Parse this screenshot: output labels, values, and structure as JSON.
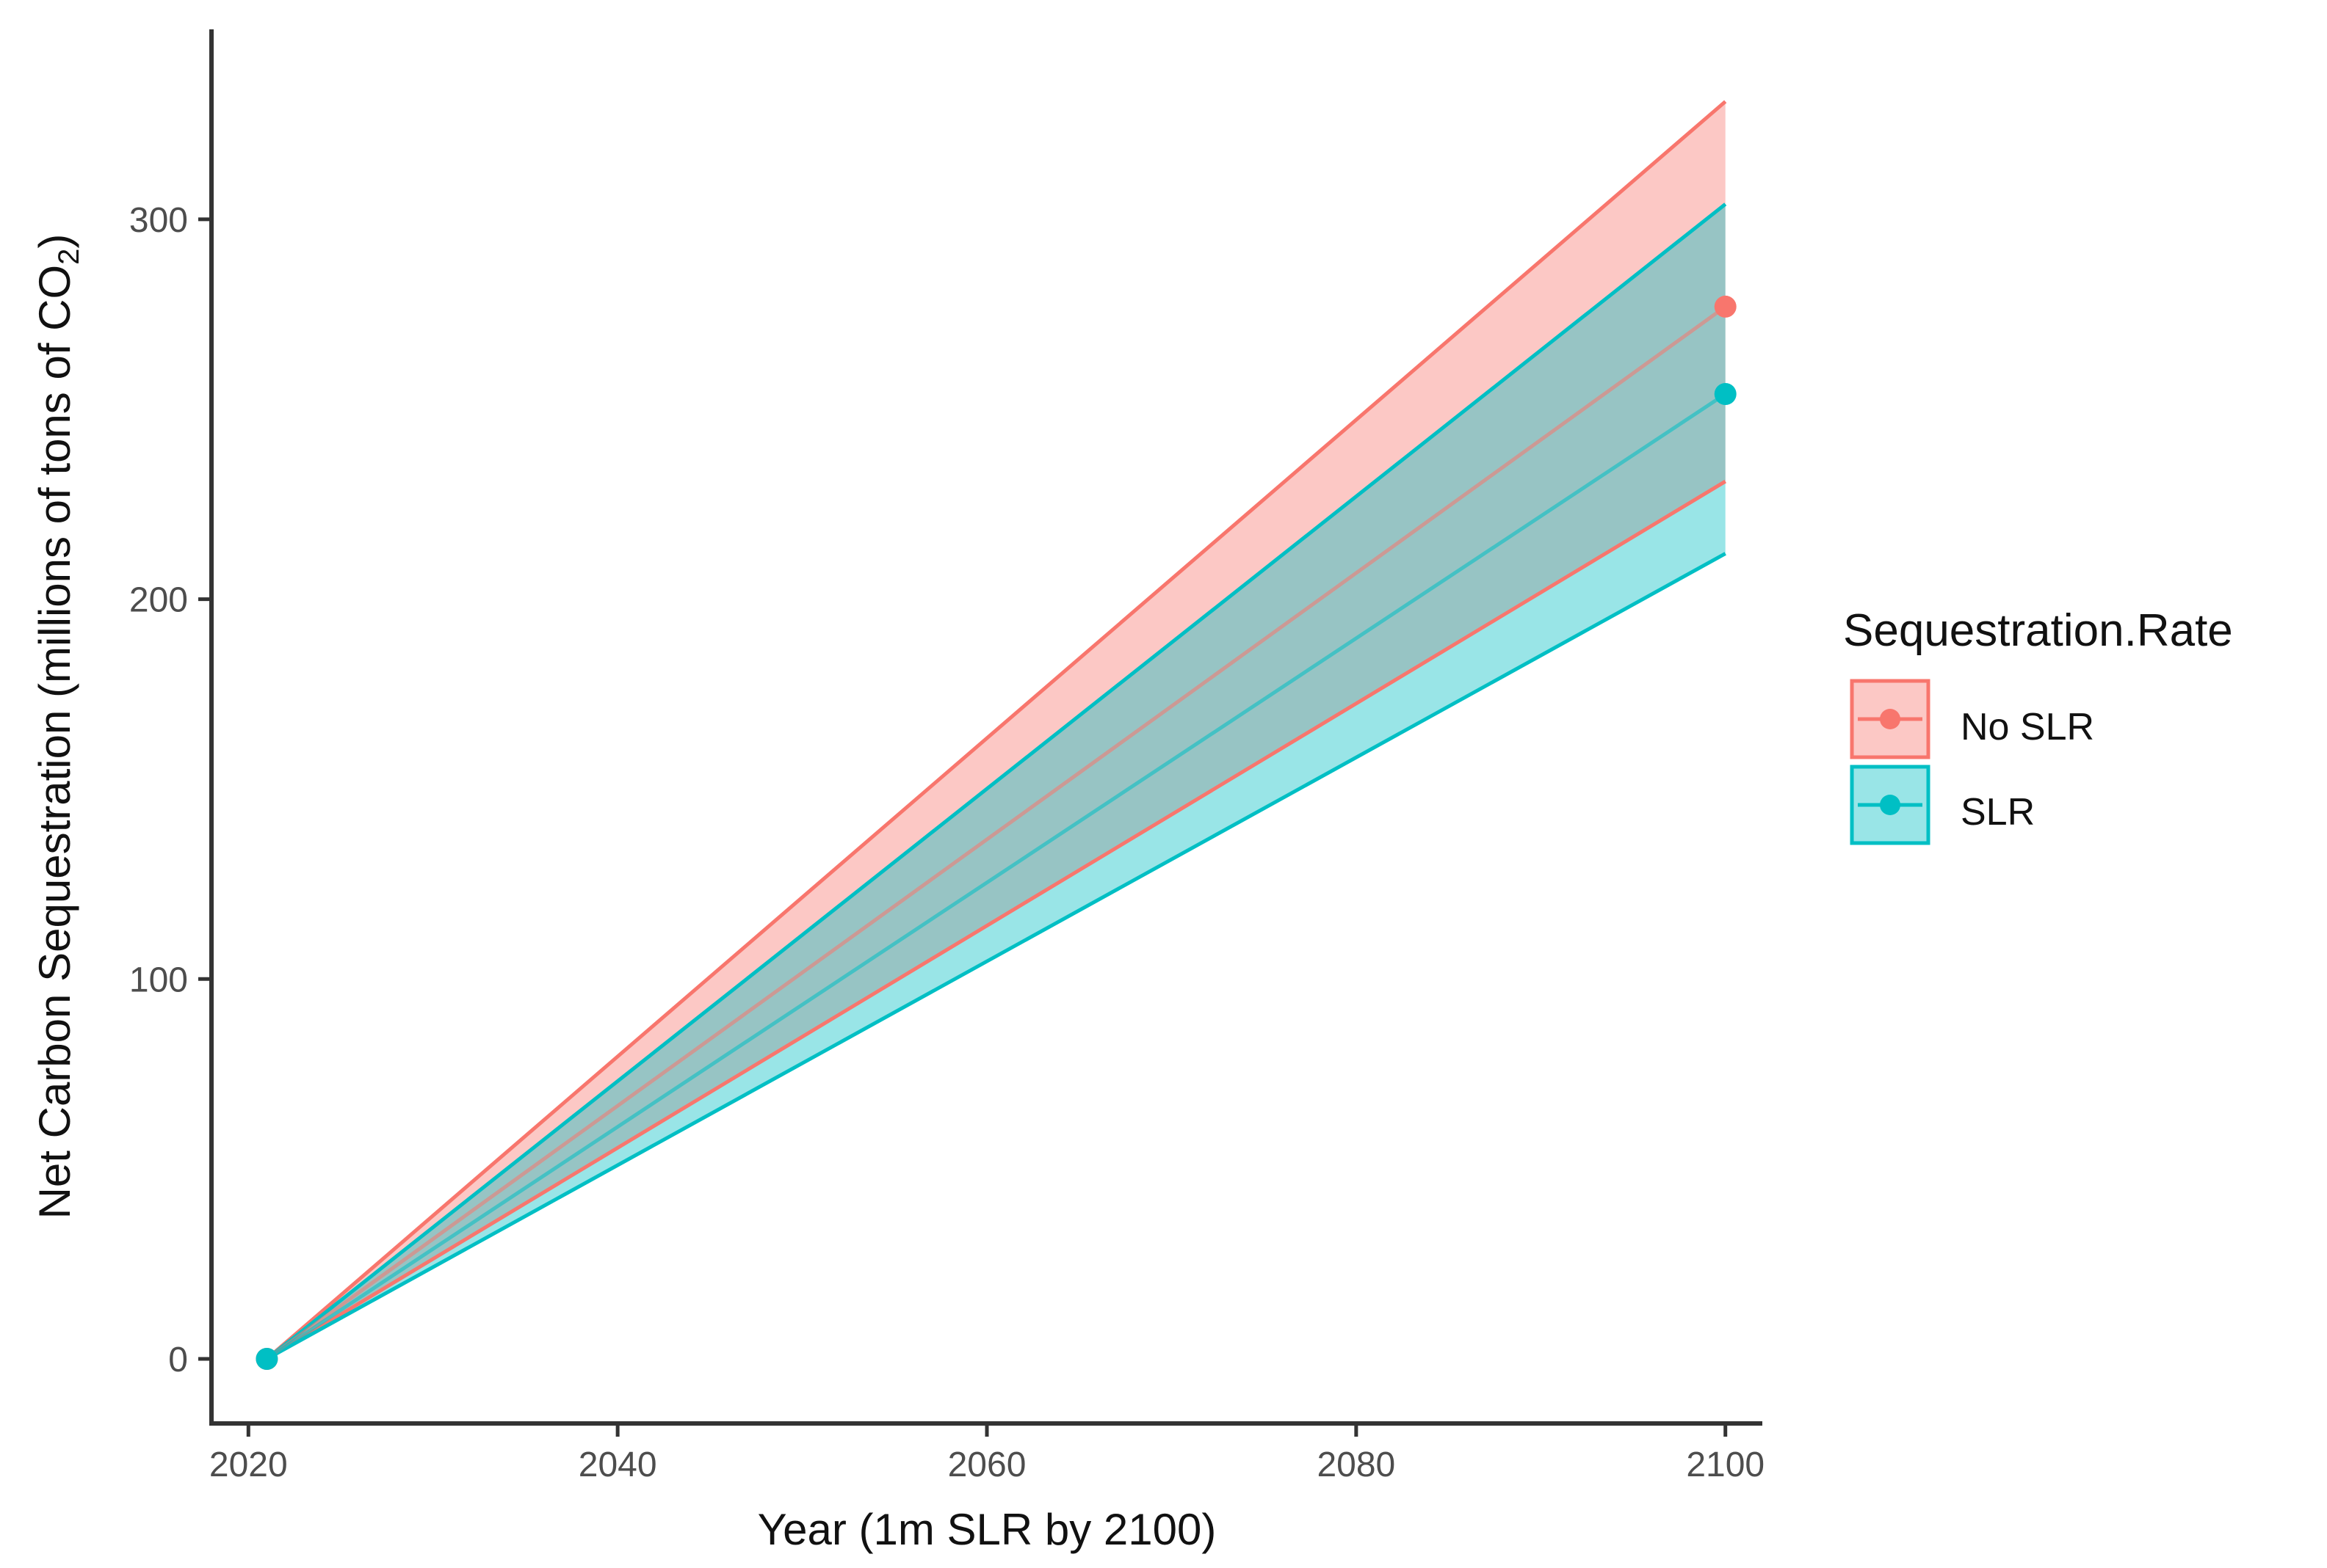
{
  "chart_data": {
    "type": "line",
    "title": "",
    "xlabel": "Year (1m SLR by 2100)",
    "ylabel_parts": {
      "before": "Net Carbon Sequestration (millions of tons of CO",
      "sub": "2",
      "after": ")"
    },
    "xlim": [
      2018,
      2102
    ],
    "ylim": [
      -17,
      350
    ],
    "x_ticks": [
      2020,
      2040,
      2060,
      2080,
      2100
    ],
    "y_ticks": [
      0,
      100,
      200,
      300
    ],
    "x_tick_labels": [
      "2020",
      "2040",
      "2060",
      "2080",
      "2100"
    ],
    "y_tick_labels": [
      "0",
      "100",
      "200",
      "300"
    ],
    "grid": false,
    "legend": {
      "title": "Sequestration.Rate",
      "placement": "right",
      "entries": [
        "No SLR",
        "SLR"
      ]
    },
    "series": [
      {
        "name": "No SLR",
        "color": "#F8766D",
        "x": [
          2021,
          2100
        ],
        "y": [
          0,
          277
        ],
        "lower": [
          0,
          231
        ],
        "upper": [
          0,
          331
        ]
      },
      {
        "name": "SLR",
        "color": "#00BFC4",
        "x": [
          2021,
          2100
        ],
        "y": [
          0,
          254
        ],
        "lower": [
          0,
          212
        ],
        "upper": [
          0,
          304
        ]
      }
    ]
  }
}
